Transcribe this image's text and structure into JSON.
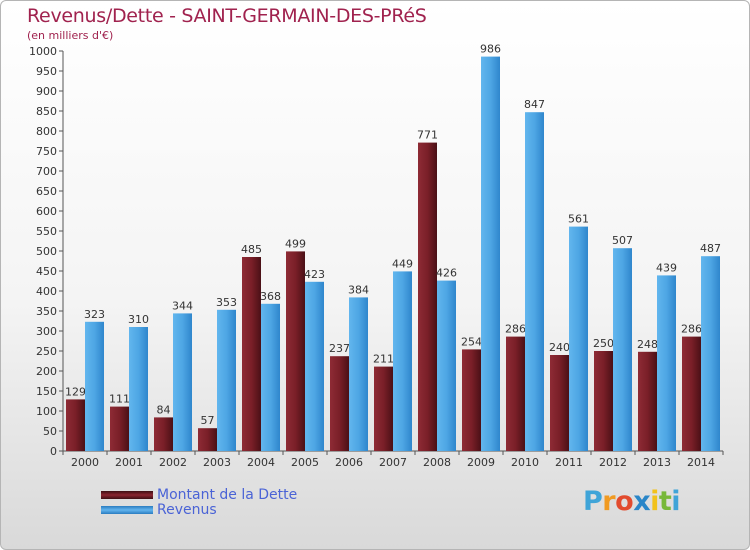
{
  "title": "Revenus/Dette - SAINT-GERMAIN-DES-PRéS",
  "subtitle": "(en milliers d'€)",
  "brand": {
    "text": "Proxiti",
    "letter_colors": [
      "#3fa4d8",
      "#f09a22",
      "#e24b2e",
      "#2a86c8",
      "#f2c21b",
      "#78b83a",
      "#3fa4d8"
    ]
  },
  "colors": {
    "title": "#a0224e",
    "dette": "#7a1f28",
    "revenus": "#4ea6e4",
    "legend_text": "#4a63d6"
  },
  "chart_data": {
    "type": "bar",
    "title": "Revenus/Dette - SAINT-GERMAIN-DES-PRéS",
    "ylabel": "(en milliers d'€)",
    "xlabel": "",
    "ylim": [
      0,
      1000
    ],
    "ytick_step": 50,
    "grid": false,
    "legend_position": "bottom-left",
    "categories": [
      "2000",
      "2001",
      "2002",
      "2003",
      "2004",
      "2005",
      "2006",
      "2007",
      "2008",
      "2009",
      "2010",
      "2011",
      "2012",
      "2013",
      "2014"
    ],
    "series": [
      {
        "name": "Montant de la Dette",
        "color": "#7a1f28",
        "values": [
          129,
          111,
          84,
          57,
          485,
          499,
          237,
          211,
          771,
          254,
          286,
          240,
          250,
          248,
          286
        ]
      },
      {
        "name": "Revenus",
        "color": "#4ea6e4",
        "values": [
          323,
          310,
          344,
          353,
          368,
          423,
          384,
          449,
          426,
          986,
          847,
          561,
          507,
          439,
          487
        ]
      }
    ]
  }
}
